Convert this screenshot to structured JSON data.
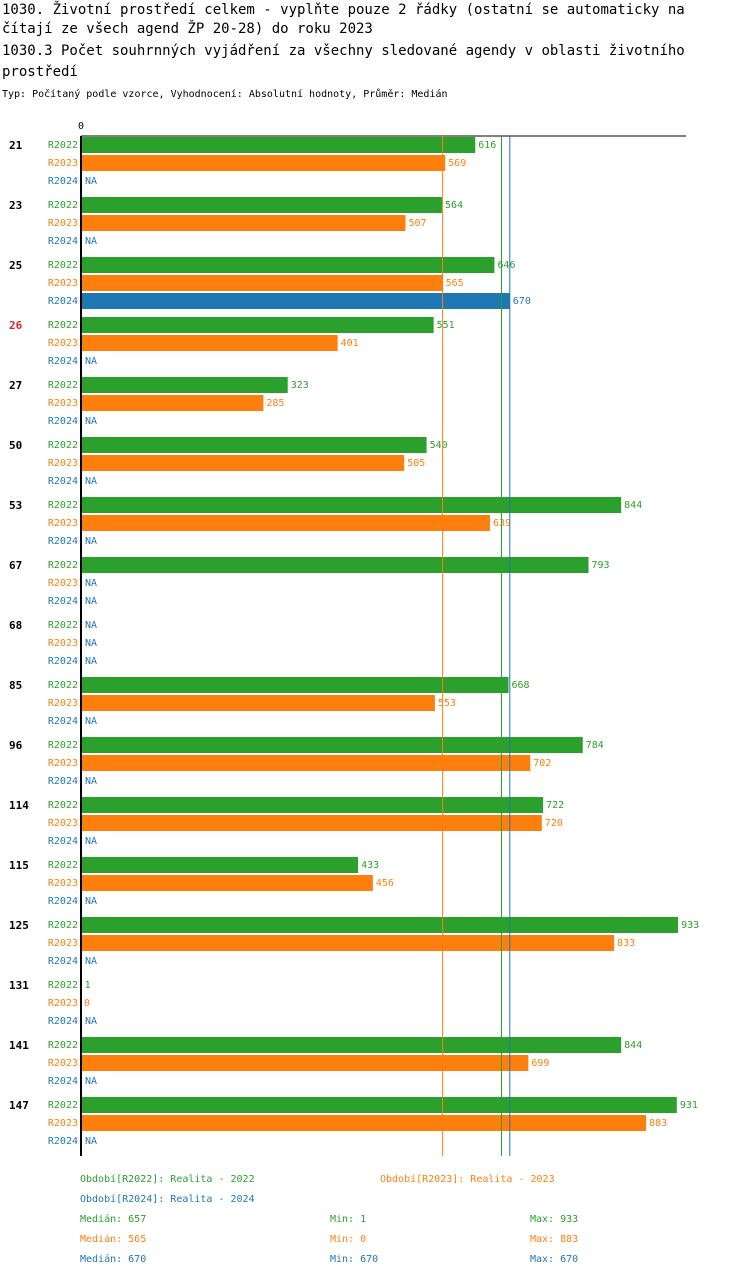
{
  "header": {
    "title_line1": "1030. Životní prostředí celkem - vyplňte pouze 2 řádky (ostatní se automaticky na",
    "title_line2": "čítají ze všech agend ŽP 20-28) do roku 2023",
    "title_line3": "1030.3 Počet souhrnných vyjádření za všechny sledované agendy v oblasti životního",
    "title_line4": " prostředí",
    "subtitle": "Typ: Počítaný podle vzorce, Vyhodnocení: Absolutní hodnoty, Průměr: Medián"
  },
  "chart_data": {
    "type": "bar",
    "orientation": "horizontal",
    "axis_zero_label": "0",
    "xlim": [
      0,
      950
    ],
    "missing_label": "NA",
    "highlight_category": "26",
    "categories": [
      "21",
      "23",
      "25",
      "26",
      "27",
      "50",
      "53",
      "67",
      "68",
      "85",
      "96",
      "114",
      "115",
      "125",
      "131",
      "141",
      "147"
    ],
    "series": [
      {
        "name": "R2022",
        "color": "#2ca02c",
        "values": [
          616,
          564,
          646,
          551,
          323,
          540,
          844,
          793,
          null,
          668,
          784,
          722,
          433,
          933,
          1,
          844,
          931
        ]
      },
      {
        "name": "R2023",
        "color": "#ff7f0e",
        "values": [
          569,
          507,
          565,
          401,
          285,
          505,
          639,
          null,
          null,
          553,
          702,
          720,
          456,
          833,
          0,
          699,
          883
        ]
      },
      {
        "name": "R2024",
        "color": "#1f77b4",
        "values": [
          null,
          null,
          670,
          null,
          null,
          null,
          null,
          null,
          null,
          null,
          null,
          null,
          null,
          null,
          null,
          null,
          null
        ]
      }
    ],
    "medians": [
      {
        "series": "R2022",
        "value": 657
      },
      {
        "series": "R2023",
        "value": 565
      },
      {
        "series": "R2024",
        "value": 670
      }
    ]
  },
  "legend": {
    "period_r2022": "Období[R2022]: Realita - 2022",
    "period_r2023": "Období[R2023]: Realita - 2023",
    "period_r2024": "Období[R2024]: Realita - 2024",
    "stats": [
      {
        "series": "R2022",
        "color": "#2ca02c",
        "median": "Medián: 657",
        "min": "Min: 1",
        "max": "Max: 933"
      },
      {
        "series": "R2023",
        "color": "#ff7f0e",
        "median": "Medián: 565",
        "min": "Min: 0",
        "max": "Max: 883"
      },
      {
        "series": "R2024",
        "color": "#1f77b4",
        "median": "Medián: 670",
        "min": "Min: 670",
        "max": "Max: 670"
      }
    ]
  }
}
